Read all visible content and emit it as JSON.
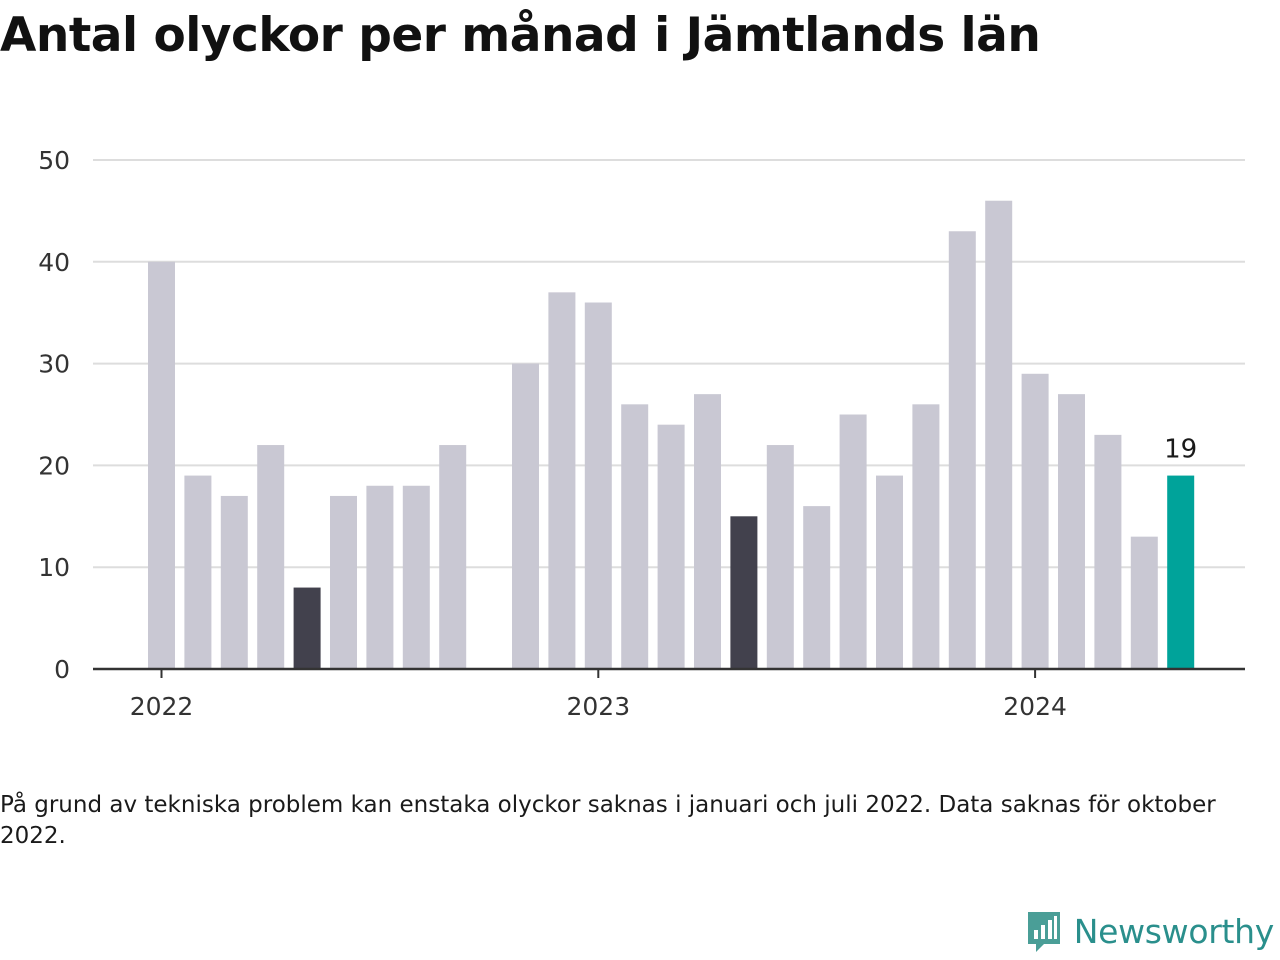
{
  "title": "Antal olyckor per månad i Jämtlands län",
  "note": "På grund av tekniska problem kan enstaka olyckor saknas i januari och juli 2022. Data saknas för oktober 2022.",
  "brand": {
    "name": "Newsworthy",
    "icon": "newsworthy-logo-icon"
  },
  "colors": {
    "default_bar": "#c9c8d3",
    "highlight_bar": "#42414d",
    "latest_bar": "#00a39a",
    "gridline": "#dddddd",
    "axis": "#333333",
    "brand": "#2a8f8c"
  },
  "chart_data": {
    "type": "bar",
    "title": "Antal olyckor per månad i Jämtlands län",
    "xlabel": "",
    "ylabel": "",
    "ylim": [
      0,
      50
    ],
    "yticks": [
      0,
      10,
      20,
      30,
      40,
      50
    ],
    "grid": true,
    "xtick_labels": [
      "2022",
      "2023",
      "2024"
    ],
    "categories": [
      "2022-01",
      "2022-02",
      "2022-03",
      "2022-04",
      "2022-05",
      "2022-06",
      "2022-07",
      "2022-08",
      "2022-09",
      "2022-10",
      "2022-11",
      "2022-12",
      "2023-01",
      "2023-02",
      "2023-03",
      "2023-04",
      "2023-05",
      "2023-06",
      "2023-07",
      "2023-08",
      "2023-09",
      "2023-10",
      "2023-11",
      "2023-12",
      "2024-01",
      "2024-02",
      "2024-03",
      "2024-04",
      "2024-05",
      "2024-06",
      "2024-07",
      "2024-08"
    ],
    "values": [
      40,
      19,
      17,
      22,
      8,
      17,
      18,
      18,
      22,
      null,
      30,
      37,
      36,
      26,
      24,
      27,
      15,
      22,
      16,
      25,
      19,
      26,
      43,
      46,
      29,
      27,
      23,
      13,
      19,
      null,
      null,
      null
    ],
    "bar_style": [
      "default",
      "default",
      "default",
      "default",
      "highlight",
      "default",
      "default",
      "default",
      "default",
      "default",
      "default",
      "default",
      "default",
      "default",
      "default",
      "default",
      "highlight",
      "default",
      "default",
      "default",
      "default",
      "default",
      "default",
      "default",
      "default",
      "default",
      "default",
      "default",
      "latest",
      "default",
      "default",
      "default"
    ],
    "value_labels": {
      "28": "19"
    }
  }
}
